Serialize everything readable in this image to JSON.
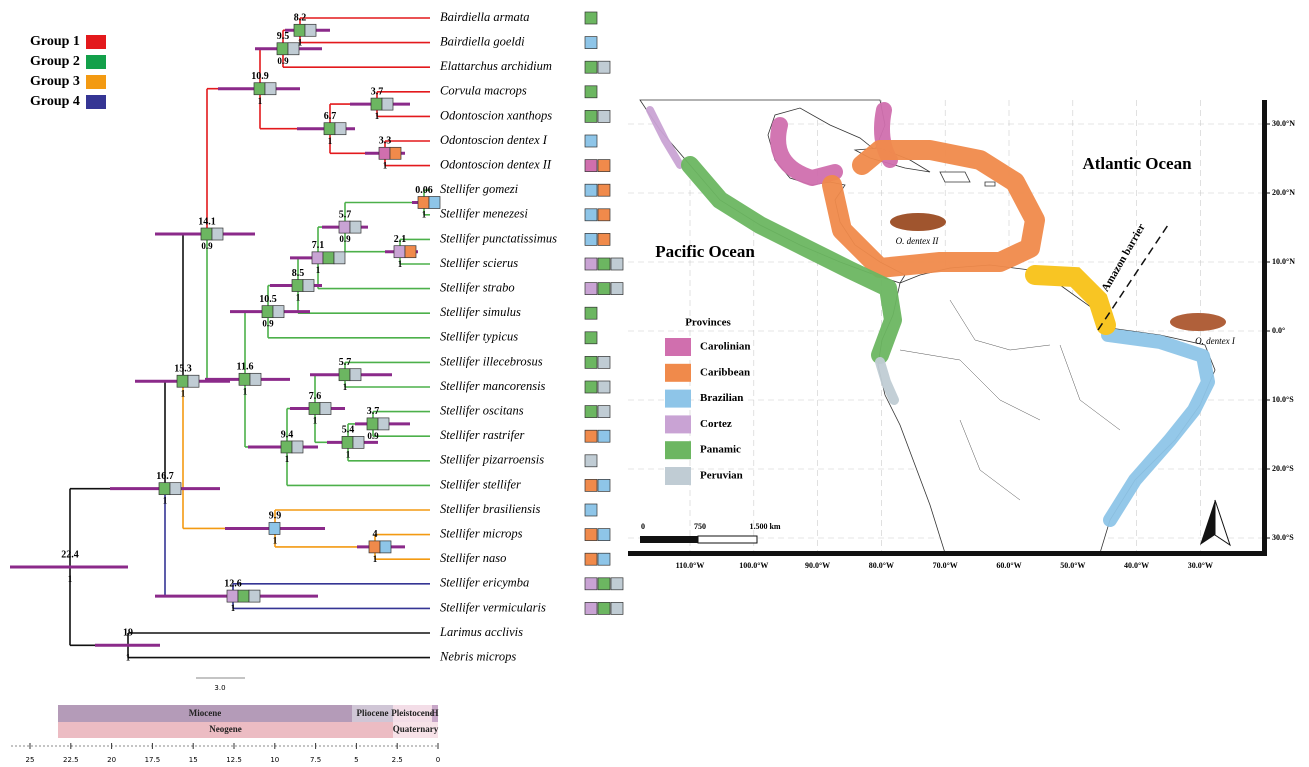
{
  "groups": [
    {
      "label": "Group 1",
      "color": "#e3191c"
    },
    {
      "label": "Group 2",
      "color": "#13a04a"
    },
    {
      "label": "Group 3",
      "color": "#f39a12"
    },
    {
      "label": "Group 4",
      "color": "#353594"
    }
  ],
  "tree": {
    "bar_color": "#8b2a8a",
    "tips": [
      {
        "name": "Bairdiella armata",
        "color": "#e3191c",
        "areas": [
          "#6cb661"
        ]
      },
      {
        "name": "Bairdiella goeldi",
        "color": "#e3191c",
        "areas": [
          "#8ec5e8"
        ]
      },
      {
        "name": "Elattarchus archidium",
        "color": "#e3191c",
        "areas": [
          "#6cb661",
          "#c0ccd4"
        ]
      },
      {
        "name": "Corvula macrops",
        "color": "#e3191c",
        "areas": [
          "#6cb661"
        ]
      },
      {
        "name": "Odontoscion xanthops",
        "color": "#e3191c",
        "areas": [
          "#6cb661",
          "#c0ccd4"
        ]
      },
      {
        "name": "Odontoscion dentex I",
        "color": "#e3191c",
        "areas": [
          "#8ec5e8"
        ]
      },
      {
        "name": "Odontoscion dentex II",
        "color": "#e3191c",
        "areas": [
          "#d06fae",
          "#f08a4b"
        ]
      },
      {
        "name": "Stellifer gomezi",
        "color": "#4cb04a",
        "areas": [
          "#8ec5e8",
          "#f08a4b"
        ]
      },
      {
        "name": "Stellifer menezesi",
        "color": "#4cb04a",
        "areas": [
          "#8ec5e8",
          "#f08a4b"
        ]
      },
      {
        "name": "Stellifer punctatissimus",
        "color": "#4cb04a",
        "areas": [
          "#8ec5e8",
          "#f08a4b"
        ]
      },
      {
        "name": "Stellifer scierus",
        "color": "#4cb04a",
        "areas": [
          "#c9a3d4",
          "#6cb661",
          "#c0ccd4"
        ]
      },
      {
        "name": "Stellifer strabo",
        "color": "#4cb04a",
        "areas": [
          "#c9a3d4",
          "#6cb661",
          "#c0ccd4"
        ]
      },
      {
        "name": "Stellifer simulus",
        "color": "#4cb04a",
        "areas": [
          "#6cb661"
        ]
      },
      {
        "name": "Stellifer typicus",
        "color": "#4cb04a",
        "areas": [
          "#6cb661"
        ]
      },
      {
        "name": "Stellifer illecebrosus",
        "color": "#4cb04a",
        "areas": [
          "#6cb661",
          "#c0ccd4"
        ]
      },
      {
        "name": "Stellifer mancorensis",
        "color": "#4cb04a",
        "areas": [
          "#6cb661",
          "#c0ccd4"
        ]
      },
      {
        "name": "Stellifer oscitans",
        "color": "#4cb04a",
        "areas": [
          "#6cb661",
          "#c0ccd4"
        ]
      },
      {
        "name": "Stellifer rastrifer",
        "color": "#4cb04a",
        "areas": [
          "#f08a4b",
          "#8ec5e8"
        ]
      },
      {
        "name": "Stellifer pizarroensis",
        "color": "#4cb04a",
        "areas": [
          "#c0ccd4"
        ]
      },
      {
        "name": "Stellifer stellifer",
        "color": "#4cb04a",
        "areas": [
          "#f08a4b",
          "#8ec5e8"
        ]
      },
      {
        "name": "Stellifer brasiliensis",
        "color": "#f39a12",
        "areas": [
          "#8ec5e8"
        ]
      },
      {
        "name": "Stellifer microps",
        "color": "#f39a12",
        "areas": [
          "#f08a4b",
          "#8ec5e8"
        ]
      },
      {
        "name": "Stellifer naso",
        "color": "#f39a12",
        "areas": [
          "#f08a4b",
          "#8ec5e8"
        ]
      },
      {
        "name": "Stellifer ericymba",
        "color": "#353594",
        "areas": [
          "#c9a3d4",
          "#6cb661",
          "#c0ccd4"
        ]
      },
      {
        "name": "Stellifer vermicularis",
        "color": "#353594",
        "areas": [
          "#c9a3d4",
          "#6cb661",
          "#c0ccd4"
        ]
      },
      {
        "name": "Larimus acclivis",
        "color": "#111111",
        "areas": []
      },
      {
        "name": "Nebris microps",
        "color": "#111111",
        "areas": []
      }
    ],
    "nodes": [
      {
        "age": "22.4",
        "support": "1",
        "color": "#111111",
        "areas": []
      },
      {
        "age": "16.7",
        "support": "1",
        "color": "#111111",
        "areas": [
          "#6cb661",
          "#c0ccd4"
        ]
      },
      {
        "age": "15.3",
        "support": "1",
        "color": "#111111",
        "areas": [
          "#6cb661",
          "#c0ccd4"
        ]
      },
      {
        "age": "14.1",
        "support": "0.9",
        "color": "#111111",
        "areas": [
          "#6cb661",
          "#c0ccd4"
        ]
      },
      {
        "age": "10.9",
        "support": "1",
        "color": "#e3191c",
        "areas": [
          "#6cb661",
          "#c0ccd4"
        ]
      },
      {
        "age": "9.5",
        "support": "0.9",
        "color": "#e3191c",
        "areas": [
          "#6cb661",
          "#c0ccd4"
        ]
      },
      {
        "age": "8.2",
        "support": "1",
        "color": "#e3191c",
        "areas": [
          "#6cb661",
          "#c0ccd4"
        ]
      },
      {
        "age": "6.7",
        "support": "1",
        "color": "#e3191c",
        "areas": [
          "#6cb661",
          "#c0ccd4"
        ]
      },
      {
        "age": "3.7",
        "support": "1",
        "color": "#e3191c",
        "areas": [
          "#6cb661",
          "#c0ccd4"
        ]
      },
      {
        "age": "3.3",
        "support": "1",
        "color": "#e3191c",
        "areas": [
          "#d06fae",
          "#f08a4b"
        ]
      },
      {
        "age": "11.6",
        "support": "1",
        "color": "#4cb04a",
        "areas": [
          "#6cb661",
          "#c0ccd4"
        ]
      },
      {
        "age": "10.5",
        "support": "0.9",
        "color": "#4cb04a",
        "areas": [
          "#6cb661",
          "#c0ccd4"
        ]
      },
      {
        "age": "8.5",
        "support": "1",
        "color": "#4cb04a",
        "areas": [
          "#6cb661",
          "#c0ccd4"
        ]
      },
      {
        "age": "7.1",
        "support": "1",
        "color": "#4cb04a",
        "areas": [
          "#c9a3d4",
          "#6cb661",
          "#c0ccd4"
        ]
      },
      {
        "age": "5.7",
        "support": "0.9",
        "color": "#4cb04a",
        "areas": [
          "#c9a3d4",
          "#c0ccd4"
        ]
      },
      {
        "age": "0.06",
        "support": "1",
        "color": "#4cb04a",
        "areas": [
          "#f08a4b",
          "#8ec5e8"
        ]
      },
      {
        "age": "2.1",
        "support": "1",
        "color": "#4cb04a",
        "areas": [
          "#c9a3d4",
          "#f08a4b"
        ]
      },
      {
        "age": "9.4",
        "support": "1",
        "color": "#4cb04a",
        "areas": [
          "#6cb661",
          "#c0ccd4"
        ]
      },
      {
        "age": "7.6",
        "support": "1",
        "color": "#4cb04a",
        "areas": [
          "#6cb661",
          "#c0ccd4"
        ]
      },
      {
        "age": "5.7",
        "support": "1",
        "color": "#4cb04a",
        "areas": [
          "#6cb661",
          "#c0ccd4"
        ]
      },
      {
        "age": "5.4",
        "support": "1",
        "color": "#4cb04a",
        "areas": [
          "#6cb661",
          "#c0ccd4"
        ]
      },
      {
        "age": "3.7",
        "support": "0.9",
        "color": "#4cb04a",
        "areas": [
          "#6cb661",
          "#c0ccd4"
        ]
      },
      {
        "age": "9.9",
        "support": "1",
        "color": "#f39a12",
        "areas": [
          "#8ec5e8"
        ]
      },
      {
        "age": "4",
        "support": "1",
        "color": "#f39a12",
        "areas": [
          "#f08a4b",
          "#8ec5e8"
        ]
      },
      {
        "age": "12.6",
        "support": "1",
        "color": "#353594",
        "areas": [
          "#c9a3d4",
          "#6cb661",
          "#c0ccd4"
        ]
      },
      {
        "age": "19",
        "support": "1",
        "color": "#111111",
        "areas": []
      }
    ],
    "scale_bar": "3.0"
  },
  "timescale": {
    "epochs": [
      "Miocene",
      "Pliocene",
      "Pleistocene",
      "H"
    ],
    "periods": [
      "Neogene",
      "Quaternary"
    ],
    "xlim": [
      25,
      0
    ],
    "ticks": [
      25,
      22.5,
      20,
      17.5,
      15,
      12.5,
      10,
      7.5,
      5,
      2.5,
      0
    ]
  },
  "map": {
    "oceans": [
      "Atlantic Ocean",
      "Pacific Ocean"
    ],
    "provinces_title": "Provinces",
    "provinces": [
      {
        "name": "Carolinian",
        "color": "#d06fae"
      },
      {
        "name": "Caribbean",
        "color": "#f08a4b"
      },
      {
        "name": "Brazilian",
        "color": "#8ec5e8"
      },
      {
        "name": "Cortez",
        "color": "#c9a3d4"
      },
      {
        "name": "Panamic",
        "color": "#6cb661"
      },
      {
        "name": "Peruvian",
        "color": "#c0ccd4"
      }
    ],
    "barrier_color": "#f8c523",
    "barrier": "Amazon barrier",
    "specimens": [
      "O. dentex II",
      "O. dentex I"
    ],
    "scale_labels": [
      "0",
      "750",
      "1.500 km"
    ],
    "lat_labels": [
      "30.0°N",
      "20.0°N",
      "10.0°N",
      "0.0°",
      "10.0°S",
      "20.0°S",
      "30.0°S"
    ],
    "lon_labels": [
      "110.0°W",
      "100.0°W",
      "90.0°W",
      "80.0°W",
      "70.0°W",
      "60.0°W",
      "50.0°W",
      "40.0°W",
      "30.0°W"
    ]
  }
}
